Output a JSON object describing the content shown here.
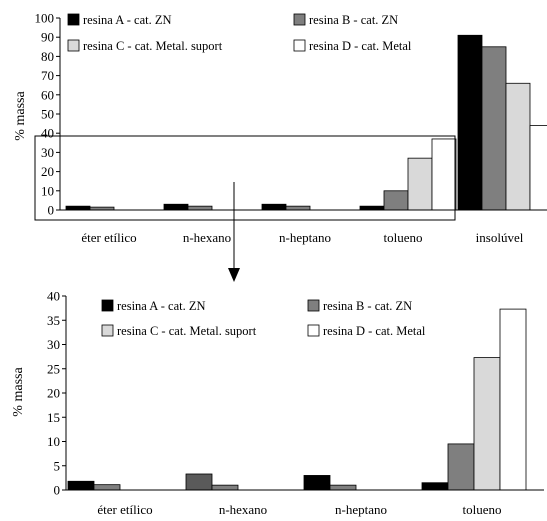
{
  "colors": {
    "resina_A": "#000000",
    "resina_B": "#7f7f7f",
    "resina_B_zoom_nhexano": "#5a5a5a",
    "resina_C": "#d9d9d9",
    "resina_D": "#ffffff",
    "stroke": "#000000"
  },
  "chart_data": [
    {
      "type": "bar",
      "ylabel": "% massa",
      "ylim": [
        0,
        100
      ],
      "yticks": [
        "0",
        "10",
        "20",
        "30",
        "40",
        "50",
        "60",
        "70",
        "80",
        "90",
        "100"
      ],
      "categories": [
        "éter etílico",
        "n-hexano",
        "n-heptano",
        "tolueno",
        "insolúvel"
      ],
      "legend_position": "top-left, inside plot",
      "grid": false,
      "series": [
        {
          "name": "resina A - cat. ZN",
          "values": [
            2,
            3,
            3,
            2,
            91
          ]
        },
        {
          "name": "resina B - cat. ZN",
          "values": [
            1.5,
            2,
            2,
            10,
            85
          ]
        },
        {
          "name": "resina C - cat. Metal. suport",
          "values": [
            0,
            0,
            0,
            27,
            66
          ]
        },
        {
          "name": "resina D - cat. Metal",
          "values": [
            0,
            0,
            0,
            37,
            44
          ]
        }
      ]
    },
    {
      "type": "bar",
      "ylabel": "% massa",
      "ylim": [
        0,
        40
      ],
      "yticks": [
        "0",
        "5",
        "10",
        "15",
        "20",
        "25",
        "30",
        "35",
        "40"
      ],
      "categories": [
        "éter etílico",
        "n-hexano",
        "n-heptano",
        "tolueno"
      ],
      "legend_position": "top, inside plot",
      "grid": false,
      "series": [
        {
          "name": "resina A - cat. ZN",
          "values": [
            1.8,
            3.3,
            3.0,
            1.5
          ]
        },
        {
          "name": "resina B - cat. ZN",
          "values": [
            1.1,
            1.0,
            1.0,
            9.5
          ]
        },
        {
          "name": "resina C - cat. Metal. suport",
          "values": [
            0,
            0,
            0,
            27.3
          ]
        },
        {
          "name": "resina D - cat. Metal",
          "values": [
            0,
            0,
            0,
            37.3
          ]
        }
      ]
    }
  ]
}
